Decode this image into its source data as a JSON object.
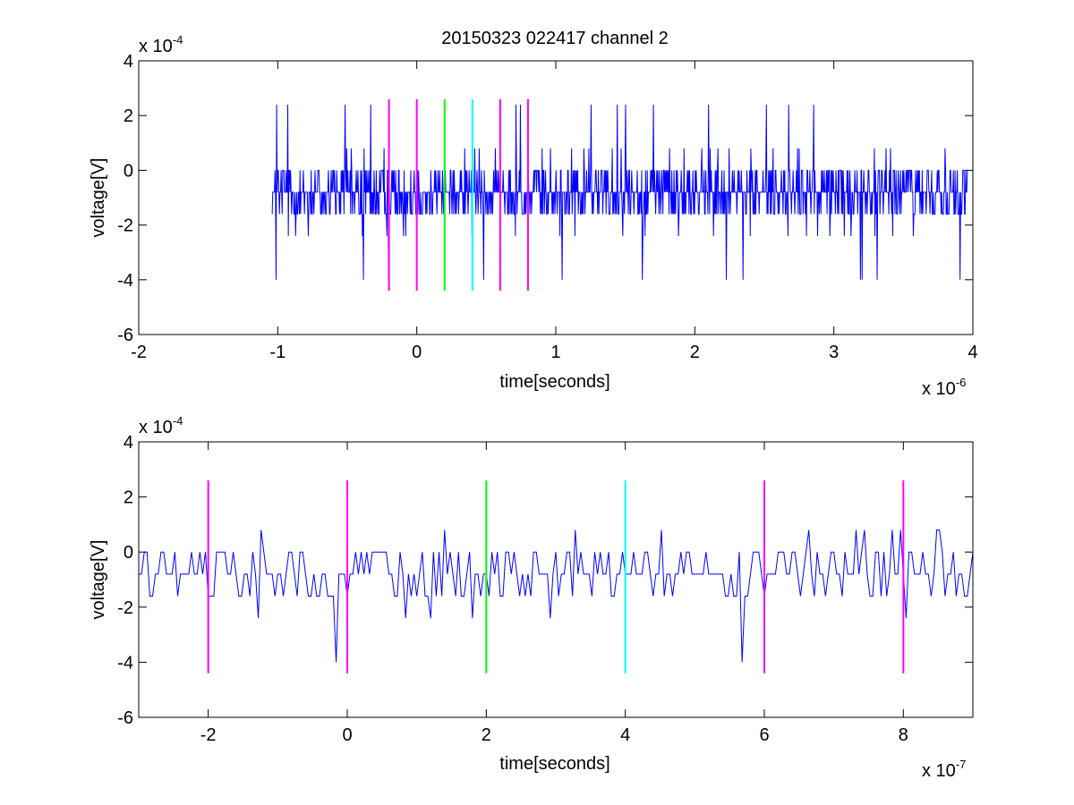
{
  "figure": {
    "title": "20150323 022417 channel 2"
  },
  "chart_data": [
    {
      "type": "line",
      "xlabel": "time[seconds]",
      "ylabel": "voltage[V]",
      "xlim": [
        -2e-06,
        4e-06
      ],
      "ylim": [
        -0.0006,
        0.0004
      ],
      "x_exponent_label": "x 10",
      "x_exponent": "-6",
      "y_exponent_label": "x 10",
      "y_exponent": "-4",
      "x_tick_values": [
        -2e-06,
        -1e-06,
        0,
        1e-06,
        2e-06,
        3e-06,
        4e-06
      ],
      "x_tick_labels": [
        "-2",
        "-1",
        "0",
        "1",
        "2",
        "3",
        "4"
      ],
      "y_tick_values": [
        -0.0006,
        -0.0004,
        -0.0002,
        0,
        0.0002,
        0.0004
      ],
      "y_tick_labels": [
        "-6",
        "-4",
        "-2",
        "0",
        "2",
        "4"
      ],
      "series": [
        {
          "color": "#0000ff",
          "x_start": -1.04e-06,
          "x_end": 3.96e-06,
          "n_points": 1250,
          "typical_range": [
            -0.0004,
            0.00024
          ]
        }
      ],
      "markers": [
        {
          "x": -2e-07,
          "color": "#ff00ff",
          "y_range": [
            -0.00044,
            0.00026
          ]
        },
        {
          "x": 0,
          "color": "#ff00ff",
          "y_range": [
            -0.00044,
            0.00026
          ]
        },
        {
          "x": 2e-07,
          "color": "#00ff00",
          "y_range": [
            -0.00044,
            0.00026
          ]
        },
        {
          "x": 4e-07,
          "color": "#00ffff",
          "y_range": [
            -0.00044,
            0.00026
          ]
        },
        {
          "x": 6e-07,
          "color": "#ff00ff",
          "y_range": [
            -0.00044,
            0.00026
          ]
        },
        {
          "x": 8e-07,
          "color": "#ff00ff",
          "y_range": [
            -0.00044,
            0.00026
          ]
        }
      ]
    },
    {
      "type": "line",
      "xlabel": "time[seconds]",
      "ylabel": "voltage[V]",
      "xlim": [
        -3e-07,
        9e-07
      ],
      "ylim": [
        -0.0006,
        0.0004
      ],
      "x_exponent_label": "x 10",
      "x_exponent": "-7",
      "y_exponent_label": "x 10",
      "y_exponent": "-4",
      "x_tick_values": [
        -2e-07,
        0,
        2e-07,
        4e-07,
        6e-07,
        8e-07
      ],
      "x_tick_labels": [
        "-2",
        "0",
        "2",
        "4",
        "6",
        "8"
      ],
      "y_tick_values": [
        -0.0006,
        -0.0004,
        -0.0002,
        0,
        0.0002,
        0.0004
      ],
      "y_tick_labels": [
        "-6",
        "-4",
        "-2",
        "0",
        "2",
        "4"
      ],
      "series": [
        {
          "color": "#0000ff",
          "x_start": -3e-07,
          "x_end": 9e-07,
          "n_points": 301,
          "typical_range": [
            -0.0004,
            0.00016
          ]
        }
      ],
      "markers": [
        {
          "x": -2e-07,
          "color": "#ff00ff",
          "y_range": [
            -0.00044,
            0.00026
          ]
        },
        {
          "x": 0,
          "color": "#ff00ff",
          "y_range": [
            -0.00044,
            0.00026
          ]
        },
        {
          "x": 2e-07,
          "color": "#00ff00",
          "y_range": [
            -0.00044,
            0.00026
          ]
        },
        {
          "x": 4e-07,
          "color": "#00ffff",
          "y_range": [
            -0.00044,
            0.00026
          ]
        },
        {
          "x": 6e-07,
          "color": "#ff00ff",
          "y_range": [
            -0.00044,
            0.00026
          ]
        },
        {
          "x": 8e-07,
          "color": "#ff00ff",
          "y_range": [
            -0.00044,
            0.00026
          ]
        }
      ]
    }
  ]
}
